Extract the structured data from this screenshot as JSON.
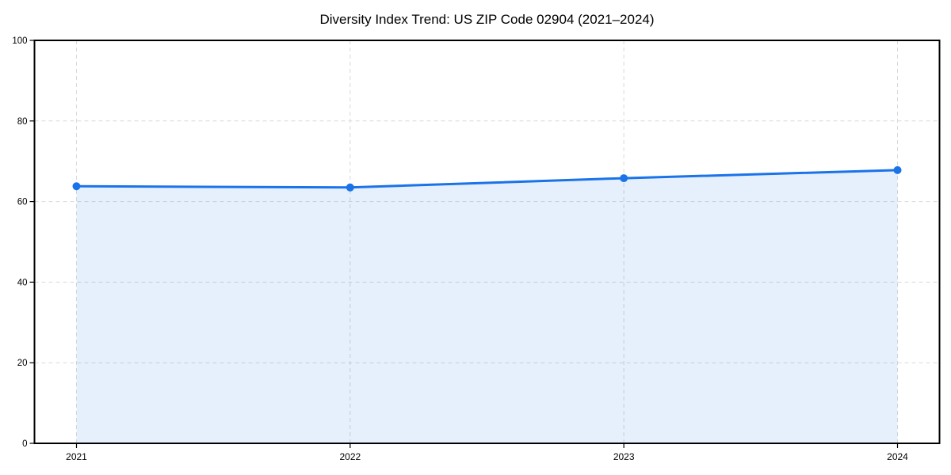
{
  "chart_data": {
    "type": "line",
    "title": "Diversity Index Trend: US ZIP Code 02904 (2021–2024)",
    "x": [
      "2021",
      "2022",
      "2023",
      "2024"
    ],
    "xticklabels": [
      "2021",
      "2022",
      "2023",
      "2024"
    ],
    "series": [
      {
        "name": "Diversity Index",
        "values": [
          63.8,
          63.5,
          65.8,
          67.8
        ],
        "color": "#1a73e8",
        "marker": "circle",
        "marker_radius": 5,
        "line_width": 3,
        "area_fill": true,
        "area_fill_color": "rgba(26,115,232,0.11)"
      }
    ],
    "xlabel": "",
    "ylabel": "",
    "ylim": [
      0,
      100
    ],
    "yticks": [
      0,
      20,
      40,
      60,
      80,
      100
    ],
    "grid": true,
    "grid_color": "#d9d9d9",
    "grid_style": "dashed",
    "legend": "none",
    "spine_color": "#000000",
    "tick_color": "#000000",
    "background_color": "#ffffff"
  }
}
